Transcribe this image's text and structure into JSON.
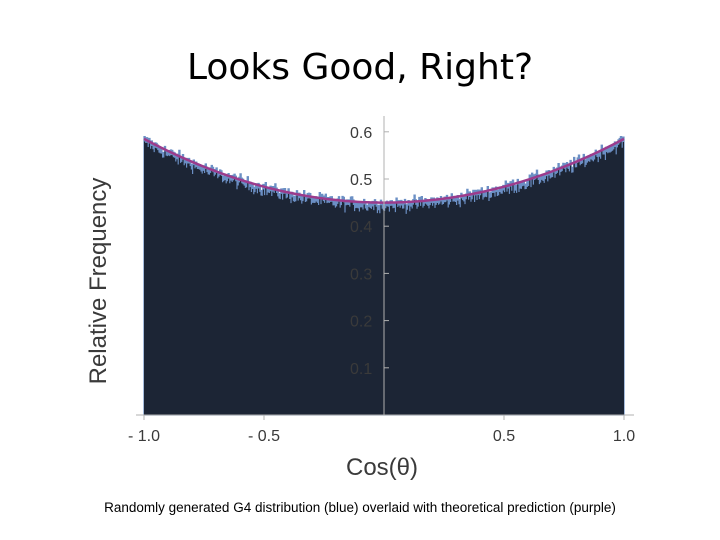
{
  "title": "Looks Good, Right?",
  "caption": "Randomly generated G4 distribution (blue) overlaid with theoretical prediction (purple)",
  "chart_data": {
    "type": "histogram",
    "xlabel": "Cos(θ)",
    "ylabel": "Relative Frequency",
    "xlim": [
      -1.0,
      1.0
    ],
    "ylim": [
      0,
      0.63
    ],
    "x_ticks": [
      -1.0,
      -0.5,
      0.5,
      1.0
    ],
    "x_tick_labels": [
      "- 1.0",
      "- 0.5",
      "0.5",
      "1.0"
    ],
    "y_ticks": [
      0.1,
      0.2,
      0.3,
      0.4,
      0.5,
      0.6
    ],
    "y_tick_labels": [
      "0.1",
      "0.2",
      "0.3",
      "0.4",
      "0.5",
      "0.6"
    ],
    "series": [
      {
        "name": "Randomly generated G4 distribution",
        "kind": "histogram",
        "bins": 400,
        "approx_shape": "0.45 + 0.135 * cos^2(theta), with statistical noise",
        "approx_values_at": {
          "-1.0": 0.59,
          "-0.5": 0.48,
          "0.0": 0.45,
          "0.5": 0.48,
          "1.0": 0.59
        }
      },
      {
        "name": "Theoretical prediction",
        "kind": "line",
        "x": [
          -1.0,
          -0.5,
          0.0,
          0.5,
          1.0
        ],
        "y": [
          0.585,
          0.484,
          0.45,
          0.484,
          0.585
        ]
      }
    ]
  },
  "colors": {
    "histogram_fill": "#1c2535",
    "histogram_edge": "#6b8fc4",
    "theory_curve": "#9b3b8c",
    "axis": "#b0b0b0",
    "text": "#3a3a3a"
  }
}
